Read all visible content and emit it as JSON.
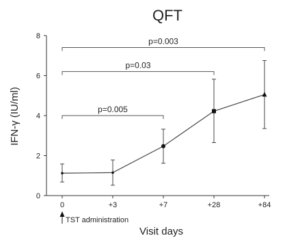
{
  "chart_data": {
    "type": "line",
    "title": "QFT",
    "xlabel": "Visit days",
    "ylabel": "IFN-γ (IU/ml)",
    "categories": [
      "0",
      "+3",
      "+7",
      "+28",
      "+84"
    ],
    "ylim": [
      0,
      8
    ],
    "yticks": [
      "0",
      "2",
      "4",
      "6",
      "8"
    ],
    "grid": false,
    "series": [
      {
        "values": [
          1.12,
          1.15,
          2.47,
          4.22,
          5.05
        ],
        "error_low": [
          0.68,
          0.52,
          1.62,
          2.65,
          3.35
        ],
        "error_high": [
          1.58,
          1.78,
          3.32,
          5.82,
          6.75
        ],
        "markers": [
          "dot",
          "dot",
          "circle",
          "square",
          "triangle"
        ]
      }
    ],
    "annotations": [
      {
        "text": "p=0.005",
        "from": "0",
        "to": "+7",
        "level": 4.0
      },
      {
        "text": "p=0.03",
        "from": "0",
        "to": "+28",
        "level": 6.2
      },
      {
        "text": "p=0.003",
        "from": "0",
        "to": "+84",
        "level": 7.4
      }
    ],
    "arrow_note": {
      "text": "TST administration",
      "at": "0"
    }
  }
}
